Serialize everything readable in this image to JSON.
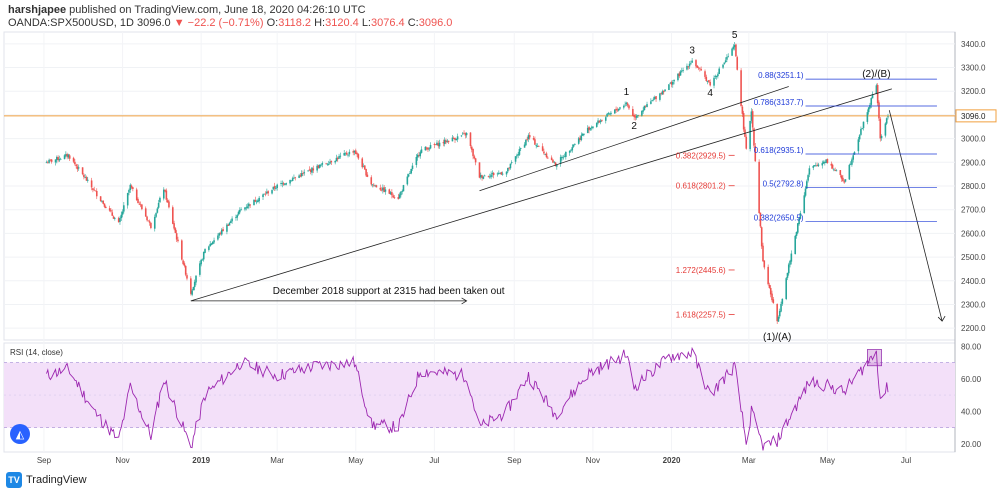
{
  "header": {
    "author": "harshjapee",
    "published": "published on TradingView.com, June 18, 2020 04:26:10 UTC",
    "symbol": "OANDA:SPX500USD, 1D",
    "last": "3096.0",
    "change": "−22.2 (−0.71%)",
    "o_label": "O:",
    "o": "3118.2",
    "h_label": "H:",
    "h": "3120.4",
    "l_label": "L:",
    "l": "3076.4",
    "c_label": "C:",
    "c": "3096.0"
  },
  "footer": {
    "brand": "TradingView"
  },
  "colors": {
    "up": "#26a69a",
    "down": "#ef5350",
    "fib_red": "#e53935",
    "fib_blue": "#1e3ad8",
    "rsi": "#9c27b0",
    "rsi_band": "#f3e0f9",
    "price_line": "#f0a040"
  },
  "chart_data": [
    {
      "type": "candlestick",
      "title": "",
      "price_axis": {
        "ticks": [
          "3400.0",
          "3300.0",
          "3200.0",
          "3100.0",
          "3000.0",
          "2900.0",
          "2800.0",
          "2700.0",
          "2600.0",
          "2500.0",
          "2400.0",
          "2300.0",
          "2200.0"
        ],
        "range": [
          2150,
          3450
        ]
      },
      "time_axis": {
        "ticks": [
          "Sep",
          "Nov",
          "2019",
          "Mar",
          "May",
          "Jul",
          "Sep",
          "Nov",
          "2020",
          "Mar",
          "May",
          "Jul"
        ]
      },
      "current_price": "3096.0",
      "keypoints": [
        {
          "date": "2018-09-03",
          "close": 2900
        },
        {
          "date": "2018-09-20",
          "close": 2930
        },
        {
          "date": "2018-10-10",
          "close": 2780
        },
        {
          "date": "2018-10-29",
          "close": 2640
        },
        {
          "date": "2018-11-07",
          "close": 2800
        },
        {
          "date": "2018-11-23",
          "close": 2630
        },
        {
          "date": "2018-12-03",
          "close": 2790
        },
        {
          "date": "2018-12-24",
          "close": 2350
        },
        {
          "date": "2019-01-04",
          "close": 2530
        },
        {
          "date": "2019-02-01",
          "close": 2700
        },
        {
          "date": "2019-03-01",
          "close": 2800
        },
        {
          "date": "2019-04-01",
          "close": 2880
        },
        {
          "date": "2019-04-30",
          "close": 2950
        },
        {
          "date": "2019-05-13",
          "close": 2810
        },
        {
          "date": "2019-06-03",
          "close": 2750
        },
        {
          "date": "2019-06-20",
          "close": 2950
        },
        {
          "date": "2019-07-26",
          "close": 3020
        },
        {
          "date": "2019-08-05",
          "close": 2840
        },
        {
          "date": "2019-08-26",
          "close": 2860
        },
        {
          "date": "2019-09-12",
          "close": 3010
        },
        {
          "date": "2019-10-03",
          "close": 2890
        },
        {
          "date": "2019-10-28",
          "close": 3040
        },
        {
          "date": "2019-11-27",
          "close": 3150
        },
        {
          "date": "2019-12-03",
          "close": 3090
        },
        {
          "date": "2019-12-31",
          "close": 3230
        },
        {
          "date": "2020-01-17",
          "close": 3330
        },
        {
          "date": "2020-01-31",
          "close": 3230
        },
        {
          "date": "2020-02-19",
          "close": 3390
        },
        {
          "date": "2020-02-28",
          "close": 2950
        },
        {
          "date": "2020-03-03",
          "close": 3120
        },
        {
          "date": "2020-03-12",
          "close": 2480
        },
        {
          "date": "2020-03-23",
          "close": 2230
        },
        {
          "date": "2020-04-01",
          "close": 2460
        },
        {
          "date": "2020-04-17",
          "close": 2870
        },
        {
          "date": "2020-04-30",
          "close": 2910
        },
        {
          "date": "2020-05-14",
          "close": 2820
        },
        {
          "date": "2020-06-08",
          "close": 3230
        },
        {
          "date": "2020-06-11",
          "close": 3000
        },
        {
          "date": "2020-06-17",
          "close": 3096
        }
      ],
      "wave_labels": [
        {
          "text": "1",
          "date": "2019-11-27",
          "price": 3185
        },
        {
          "text": "2",
          "date": "2019-12-03",
          "price": 3040
        },
        {
          "text": "3",
          "date": "2020-01-17",
          "price": 3360
        },
        {
          "text": "4",
          "date": "2020-01-31",
          "price": 3180
        },
        {
          "text": "5",
          "date": "2020-02-19",
          "price": 3425
        },
        {
          "text": "(1)/(A)",
          "date": "2020-03-23",
          "price": 2150
        },
        {
          "text": "(2)/(B)",
          "date": "2020-06-08",
          "price": 3260
        }
      ],
      "fib_red": [
        {
          "label": "0.382(2929.5)",
          "price": 2929.5
        },
        {
          "label": "0.618(2801.2)",
          "price": 2801.2
        },
        {
          "label": "1.272(2445.6)",
          "price": 2445.6
        },
        {
          "label": "1.618(2257.5)",
          "price": 2257.5
        }
      ],
      "fib_blue": [
        {
          "label": "0.88(3251.1)",
          "price": 3251.1
        },
        {
          "label": "0.786(3137.7)",
          "price": 3137.7
        },
        {
          "label": "0.618(2935.1)",
          "price": 2935.1
        },
        {
          "label": "0.5(2792.8)",
          "price": 2792.8
        },
        {
          "label": "0.382(2650.5)",
          "price": 2650.5
        }
      ],
      "annotation": "December 2018 support at 2315 had been taken out"
    },
    {
      "type": "line",
      "title": "RSI (14, close)",
      "y_ticks": [
        "80.00",
        "60.00",
        "40.00",
        "20.00"
      ],
      "range": [
        15,
        82
      ],
      "band": [
        30,
        70
      ],
      "keypoints": [
        {
          "date": "2018-09-03",
          "v": 62
        },
        {
          "date": "2018-09-20",
          "v": 66
        },
        {
          "date": "2018-10-10",
          "v": 40
        },
        {
          "date": "2018-10-29",
          "v": 22
        },
        {
          "date": "2018-11-07",
          "v": 55
        },
        {
          "date": "2018-11-23",
          "v": 25
        },
        {
          "date": "2018-12-03",
          "v": 60
        },
        {
          "date": "2018-12-24",
          "v": 18
        },
        {
          "date": "2019-01-04",
          "v": 50
        },
        {
          "date": "2019-02-01",
          "v": 70
        },
        {
          "date": "2019-03-01",
          "v": 62
        },
        {
          "date": "2019-04-01",
          "v": 68
        },
        {
          "date": "2019-04-30",
          "v": 70
        },
        {
          "date": "2019-05-13",
          "v": 32
        },
        {
          "date": "2019-06-03",
          "v": 30
        },
        {
          "date": "2019-06-20",
          "v": 65
        },
        {
          "date": "2019-07-26",
          "v": 62
        },
        {
          "date": "2019-08-05",
          "v": 30
        },
        {
          "date": "2019-08-26",
          "v": 40
        },
        {
          "date": "2019-09-12",
          "v": 62
        },
        {
          "date": "2019-10-03",
          "v": 38
        },
        {
          "date": "2019-10-28",
          "v": 63
        },
        {
          "date": "2019-11-27",
          "v": 75
        },
        {
          "date": "2019-12-03",
          "v": 55
        },
        {
          "date": "2019-12-31",
          "v": 74
        },
        {
          "date": "2020-01-17",
          "v": 76
        },
        {
          "date": "2020-01-31",
          "v": 50
        },
        {
          "date": "2020-02-19",
          "v": 68
        },
        {
          "date": "2020-02-28",
          "v": 20
        },
        {
          "date": "2020-03-03",
          "v": 40
        },
        {
          "date": "2020-03-12",
          "v": 18
        },
        {
          "date": "2020-03-23",
          "v": 22
        },
        {
          "date": "2020-04-01",
          "v": 35
        },
        {
          "date": "2020-04-17",
          "v": 58
        },
        {
          "date": "2020-04-30",
          "v": 56
        },
        {
          "date": "2020-05-14",
          "v": 52
        },
        {
          "date": "2020-06-08",
          "v": 77
        },
        {
          "date": "2020-06-11",
          "v": 48
        },
        {
          "date": "2020-06-17",
          "v": 55
        }
      ]
    }
  ]
}
